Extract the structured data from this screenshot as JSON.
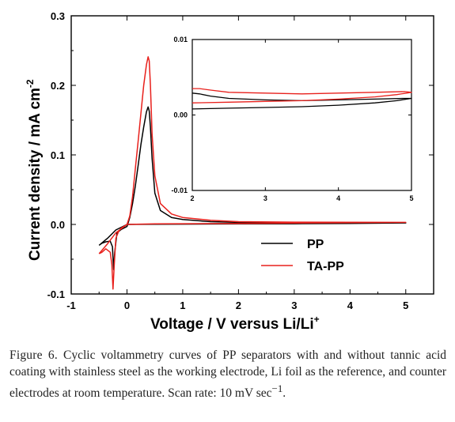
{
  "chart_data": [
    {
      "type": "line",
      "xlabel": "Voltage / V versus Li/Li",
      "xlabel_sup": "+",
      "ylabel": "Current density / mA cm",
      "ylabel_sup": "-2",
      "xlim": [
        -1,
        5.5
      ],
      "ylim": [
        -0.1,
        0.3
      ],
      "x_ticks": [
        "-1",
        "0",
        "1",
        "2",
        "3",
        "4",
        "5"
      ],
      "y_ticks": [
        "-0.1",
        "0.0",
        "0.1",
        "0.2",
        "0.3"
      ],
      "legend_position": "bottom-right",
      "series": [
        {
          "name": "PP",
          "color": "#000000",
          "x": [
            -0.5,
            -0.45,
            -0.38,
            -0.3,
            -0.26,
            -0.24,
            -0.22,
            -0.18,
            -0.1,
            0.0,
            0.05,
            0.1,
            0.15,
            0.2,
            0.25,
            0.3,
            0.35,
            0.38,
            0.4,
            0.42,
            0.45,
            0.5,
            0.6,
            0.8,
            1.0,
            1.5,
            2.0,
            3.0,
            4.0,
            5.0,
            4.0,
            3.0,
            2.0,
            1.0,
            0.5,
            0.0,
            -0.2,
            -0.35,
            -0.5
          ],
          "y": [
            -0.03,
            -0.027,
            -0.025,
            -0.024,
            -0.032,
            -0.065,
            -0.04,
            -0.012,
            -0.007,
            -0.003,
            0.01,
            0.03,
            0.055,
            0.085,
            0.115,
            0.14,
            0.162,
            0.169,
            0.163,
            0.14,
            0.095,
            0.045,
            0.02,
            0.01,
            0.007,
            0.004,
            0.003,
            0.002,
            0.002,
            0.0022,
            0.0015,
            0.001,
            0.0008,
            0.0005,
            0.0003,
            0.0,
            -0.008,
            -0.02,
            -0.03
          ]
        },
        {
          "name": "TA-PP",
          "color": "#e8201c",
          "x": [
            -0.5,
            -0.45,
            -0.38,
            -0.3,
            -0.27,
            -0.25,
            -0.23,
            -0.2,
            -0.15,
            -0.1,
            0.0,
            0.05,
            0.1,
            0.15,
            0.2,
            0.25,
            0.3,
            0.35,
            0.38,
            0.4,
            0.42,
            0.45,
            0.5,
            0.6,
            0.8,
            1.0,
            1.5,
            2.0,
            3.0,
            4.0,
            5.0,
            4.0,
            3.0,
            2.0,
            1.0,
            0.5,
            0.0,
            -0.2,
            -0.35,
            -0.5
          ],
          "y": [
            -0.042,
            -0.04,
            -0.035,
            -0.04,
            -0.058,
            -0.093,
            -0.06,
            -0.02,
            -0.01,
            -0.005,
            0.0,
            0.012,
            0.04,
            0.08,
            0.12,
            0.16,
            0.2,
            0.23,
            0.241,
            0.235,
            0.2,
            0.13,
            0.07,
            0.03,
            0.015,
            0.01,
            0.006,
            0.004,
            0.0033,
            0.0032,
            0.003,
            0.0025,
            0.002,
            0.0015,
            0.001,
            0.0008,
            0.0,
            -0.012,
            -0.028,
            -0.042
          ]
        }
      ]
    },
    {
      "type": "line",
      "xlim": [
        2,
        5
      ],
      "ylim": [
        -0.01,
        0.01
      ],
      "x_ticks": [
        "2",
        "3",
        "4",
        "5"
      ],
      "y_ticks": [
        "-0.01",
        "0.00",
        "0.01"
      ],
      "series": [
        {
          "name": "PP",
          "color": "#000000",
          "x": [
            2.0,
            2.1,
            2.25,
            2.5,
            3.0,
            3.5,
            4.0,
            4.5,
            4.9,
            5.0,
            4.8,
            4.5,
            4.0,
            3.5,
            3.0,
            2.5,
            2.0
          ],
          "y": [
            0.0029,
            0.0028,
            0.0025,
            0.0022,
            0.002,
            0.0019,
            0.002,
            0.0021,
            0.0022,
            0.0022,
            0.0019,
            0.0016,
            0.0013,
            0.0011,
            0.001,
            0.0009,
            0.0008
          ]
        },
        {
          "name": "TA-PP",
          "color": "#e8201c",
          "x": [
            2.0,
            2.1,
            2.25,
            2.5,
            3.0,
            3.5,
            4.0,
            4.5,
            4.9,
            5.0,
            4.8,
            4.5,
            4.0,
            3.5,
            3.0,
            2.5,
            2.0
          ],
          "y": [
            0.0035,
            0.0035,
            0.0033,
            0.003,
            0.0029,
            0.0028,
            0.0029,
            0.003,
            0.0031,
            0.003,
            0.0027,
            0.0024,
            0.0021,
            0.0019,
            0.0018,
            0.0017,
            0.0016
          ]
        }
      ]
    }
  ],
  "caption": {
    "label": "Figure 6.",
    "text": "Cyclic voltammetry curves of PP separators with and without tannic acid coating with stainless steel as the working electrode, Li foil as the reference, and counter electrodes at room temperature. Scan rate: 10 mV sec",
    "unit_sup": "−1",
    "end": "."
  }
}
